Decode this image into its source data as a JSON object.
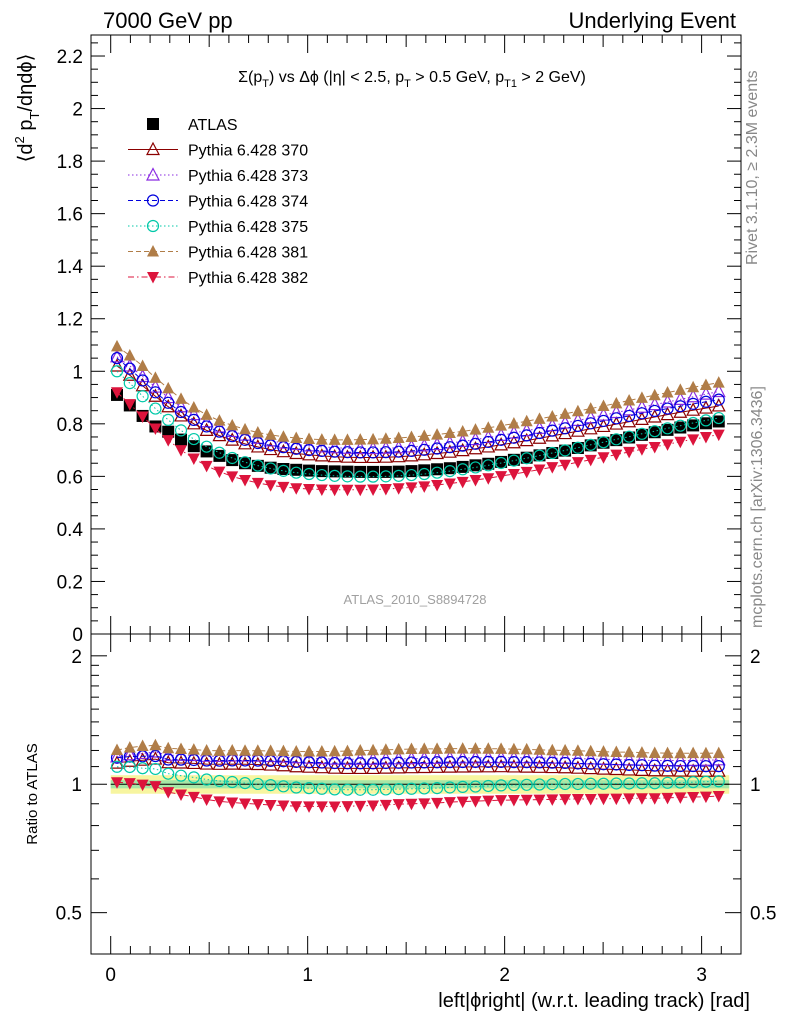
{
  "header": {
    "left": "7000 GeV pp",
    "right": "Underlying Event"
  },
  "side_labels": {
    "rivet": "Rivet 3.1.10, ≥ 2.3M events",
    "mcplots": "mcplots.cern.ch [arXiv:1306.3436]"
  },
  "watermark": "ATLAS_2010_S8894728",
  "chart_data": {
    "type": "scatter",
    "title": "Σ(p_T) vs Δφ (|η| < 2.5, p_T > 0.5 GeV, p_T1 > 2 GeV)",
    "ylabel": "⟨d² p_T/dηdφ⟩",
    "xlabel": "left|ϕright| (w.r.t. leading track) [rad]",
    "ratio_ylabel": "Ratio to ATLAS",
    "xlim": [
      -0.1,
      3.2
    ],
    "ylim": [
      0,
      2.28
    ],
    "ratio_ylim": [
      0.4,
      2.25
    ],
    "ratio_scale": "log",
    "x_ticks": [
      "0",
      "1",
      "2",
      "3"
    ],
    "y_ticks": [
      "0",
      "0.2",
      "0.4",
      "0.6",
      "0.8",
      "1",
      "1.2",
      "1.4",
      "1.6",
      "1.8",
      "2",
      "2.2"
    ],
    "ratio_ticks": [
      "0.5",
      "1",
      "2"
    ],
    "legend_position": "top-left",
    "x": [
      0.032,
      0.097,
      0.162,
      0.227,
      0.292,
      0.357,
      0.422,
      0.487,
      0.552,
      0.617,
      0.682,
      0.747,
      0.812,
      0.877,
      0.942,
      1.007,
      1.072,
      1.137,
      1.202,
      1.267,
      1.332,
      1.397,
      1.462,
      1.527,
      1.592,
      1.657,
      1.722,
      1.787,
      1.852,
      1.917,
      1.982,
      2.047,
      2.112,
      2.177,
      2.242,
      2.307,
      2.372,
      2.437,
      2.502,
      2.567,
      2.632,
      2.697,
      2.762,
      2.827,
      2.892,
      2.957,
      3.022,
      3.087
    ],
    "series": [
      {
        "name": "ATLAS",
        "color": "#000000",
        "marker": "square-filled",
        "values": [
          0.91,
          0.87,
          0.83,
          0.79,
          0.77,
          0.74,
          0.715,
          0.695,
          0.678,
          0.662,
          0.65,
          0.64,
          0.633,
          0.628,
          0.625,
          0.622,
          0.62,
          0.619,
          0.618,
          0.617,
          0.617,
          0.617,
          0.618,
          0.62,
          0.623,
          0.627,
          0.631,
          0.636,
          0.642,
          0.648,
          0.655,
          0.663,
          0.671,
          0.68,
          0.689,
          0.698,
          0.708,
          0.718,
          0.728,
          0.738,
          0.748,
          0.758,
          0.768,
          0.777,
          0.786,
          0.794,
          0.802,
          0.809
        ]
      },
      {
        "name": "Pythia 6.428 370",
        "color": "#8b0000",
        "marker": "triangle-open",
        "line": "solid",
        "values": [
          1.02,
          0.985,
          0.945,
          0.905,
          0.865,
          0.83,
          0.8,
          0.775,
          0.755,
          0.738,
          0.724,
          0.712,
          0.702,
          0.694,
          0.687,
          0.682,
          0.678,
          0.675,
          0.673,
          0.672,
          0.672,
          0.673,
          0.675,
          0.678,
          0.682,
          0.687,
          0.692,
          0.698,
          0.705,
          0.712,
          0.72,
          0.728,
          0.736,
          0.745,
          0.754,
          0.763,
          0.772,
          0.781,
          0.79,
          0.799,
          0.808,
          0.817,
          0.826,
          0.835,
          0.844,
          0.852,
          0.86,
          0.868
        ]
      },
      {
        "name": "Pythia 6.428 373",
        "color": "#8a2be2",
        "marker": "triangle-open",
        "line": "dotted",
        "values": [
          1.055,
          1.02,
          0.98,
          0.94,
          0.9,
          0.865,
          0.835,
          0.808,
          0.788,
          0.771,
          0.757,
          0.745,
          0.735,
          0.727,
          0.721,
          0.716,
          0.712,
          0.709,
          0.707,
          0.706,
          0.706,
          0.707,
          0.709,
          0.712,
          0.716,
          0.721,
          0.727,
          0.733,
          0.74,
          0.748,
          0.756,
          0.765,
          0.774,
          0.783,
          0.793,
          0.803,
          0.813,
          0.823,
          0.833,
          0.843,
          0.853,
          0.863,
          0.873,
          0.883,
          0.893,
          0.903,
          0.913,
          0.923
        ]
      },
      {
        "name": "Pythia 6.428 374",
        "color": "#0000dd",
        "marker": "circle-open",
        "line": "dashed",
        "values": [
          1.05,
          1.01,
          0.965,
          0.92,
          0.88,
          0.845,
          0.815,
          0.79,
          0.77,
          0.753,
          0.739,
          0.727,
          0.718,
          0.711,
          0.705,
          0.7,
          0.697,
          0.694,
          0.692,
          0.691,
          0.691,
          0.692,
          0.694,
          0.697,
          0.701,
          0.706,
          0.711,
          0.717,
          0.724,
          0.731,
          0.739,
          0.747,
          0.756,
          0.765,
          0.774,
          0.783,
          0.792,
          0.802,
          0.811,
          0.821,
          0.83,
          0.84,
          0.849,
          0.858,
          0.867,
          0.876,
          0.884,
          0.892
        ]
      },
      {
        "name": "Pythia 6.428 375",
        "color": "#00c8a8",
        "marker": "circle-open",
        "line": "dotted",
        "values": [
          1.0,
          0.955,
          0.905,
          0.858,
          0.815,
          0.775,
          0.742,
          0.713,
          0.69,
          0.67,
          0.654,
          0.641,
          0.63,
          0.621,
          0.614,
          0.609,
          0.605,
          0.602,
          0.6,
          0.599,
          0.599,
          0.6,
          0.602,
          0.605,
          0.609,
          0.614,
          0.62,
          0.627,
          0.634,
          0.642,
          0.651,
          0.66,
          0.669,
          0.679,
          0.689,
          0.699,
          0.709,
          0.72,
          0.73,
          0.741,
          0.751,
          0.762,
          0.772,
          0.783,
          0.793,
          0.803,
          0.813,
          0.822
        ]
      },
      {
        "name": "Pythia 6.428 381",
        "color": "#b07d48",
        "marker": "triangle-up-filled",
        "line": "dashed",
        "values": [
          1.095,
          1.06,
          1.02,
          0.975,
          0.935,
          0.895,
          0.862,
          0.834,
          0.812,
          0.794,
          0.779,
          0.767,
          0.758,
          0.751,
          0.746,
          0.742,
          0.74,
          0.739,
          0.739,
          0.74,
          0.741,
          0.743,
          0.746,
          0.75,
          0.754,
          0.759,
          0.765,
          0.771,
          0.778,
          0.785,
          0.793,
          0.801,
          0.81,
          0.819,
          0.828,
          0.838,
          0.848,
          0.858,
          0.868,
          0.878,
          0.889,
          0.899,
          0.909,
          0.919,
          0.929,
          0.939,
          0.948,
          0.957
        ]
      },
      {
        "name": "Pythia 6.428 382",
        "color": "#dc143c",
        "marker": "triangle-down-filled",
        "line": "dashdot",
        "values": [
          0.92,
          0.875,
          0.828,
          0.782,
          0.738,
          0.7,
          0.668,
          0.64,
          0.618,
          0.6,
          0.586,
          0.575,
          0.566,
          0.56,
          0.555,
          0.552,
          0.55,
          0.549,
          0.549,
          0.549,
          0.55,
          0.552,
          0.555,
          0.558,
          0.562,
          0.567,
          0.573,
          0.579,
          0.586,
          0.593,
          0.601,
          0.609,
          0.617,
          0.626,
          0.635,
          0.644,
          0.654,
          0.663,
          0.673,
          0.683,
          0.693,
          0.703,
          0.712,
          0.722,
          0.732,
          0.741,
          0.75,
          0.759
        ]
      }
    ]
  }
}
